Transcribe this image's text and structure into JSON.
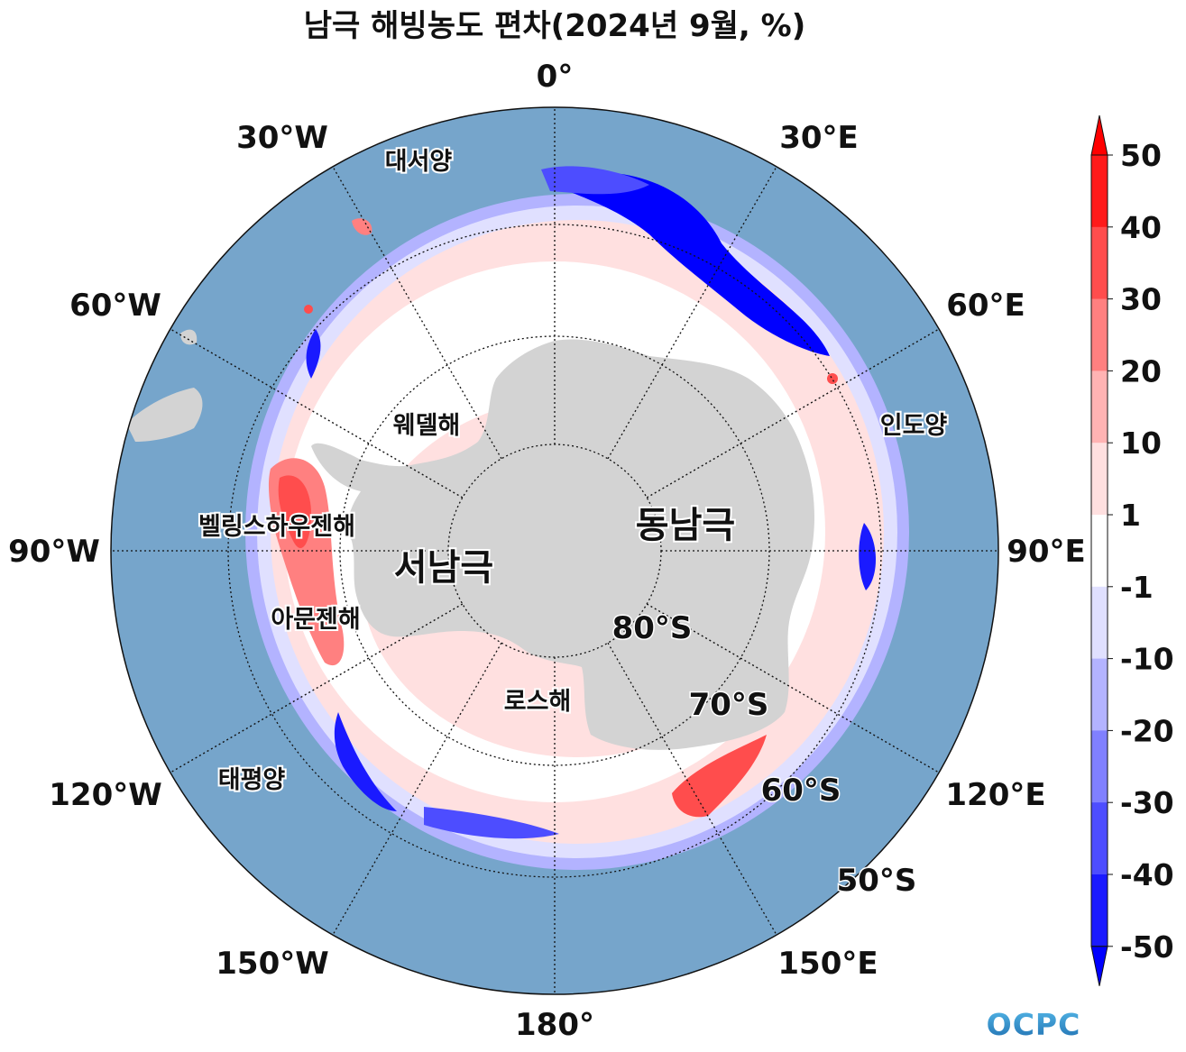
{
  "title": "남극 해빙농도 편차(2024년 9월, %)",
  "map": {
    "projection": "south-polar-stereographic",
    "boundary_latitude": "50°S",
    "longitude_labels": [
      "0°",
      "30°E",
      "60°E",
      "90°E",
      "120°E",
      "150°E",
      "180°",
      "150°W",
      "120°W",
      "90°W",
      "60°W",
      "30°W"
    ],
    "latitude_labels": [
      "80°S",
      "70°S",
      "60°S",
      "50°S"
    ],
    "region_labels": {
      "atlantic": "대서양",
      "weddell": "웨델해",
      "indian": "인도양",
      "bellingshausen": "벨링스하우젠해",
      "amundsen": "아문젠해",
      "ross": "로스해",
      "pacific": "태평양"
    },
    "continent_labels": {
      "east": "동남극",
      "west": "서남극"
    },
    "colors": {
      "ocean": "#76a5cb",
      "land": "#d3d3d3"
    }
  },
  "colorbar": {
    "ticks": [
      "50",
      "40",
      "30",
      "20",
      "10",
      "1",
      "-1",
      "-10",
      "-20",
      "-30",
      "-40",
      "-50"
    ],
    "colors": [
      "#ff0000",
      "#ff1a1a",
      "#ff4d4d",
      "#ff8080",
      "#ffb3b3",
      "#ffe0e0",
      "#ffffff",
      "#e0e0ff",
      "#b3b3ff",
      "#8080ff",
      "#4d4dff",
      "#1a1aff",
      "#0000ff"
    ],
    "extend": "both"
  },
  "logo": {
    "text": "OCPC",
    "color": "#3a8cc8"
  }
}
